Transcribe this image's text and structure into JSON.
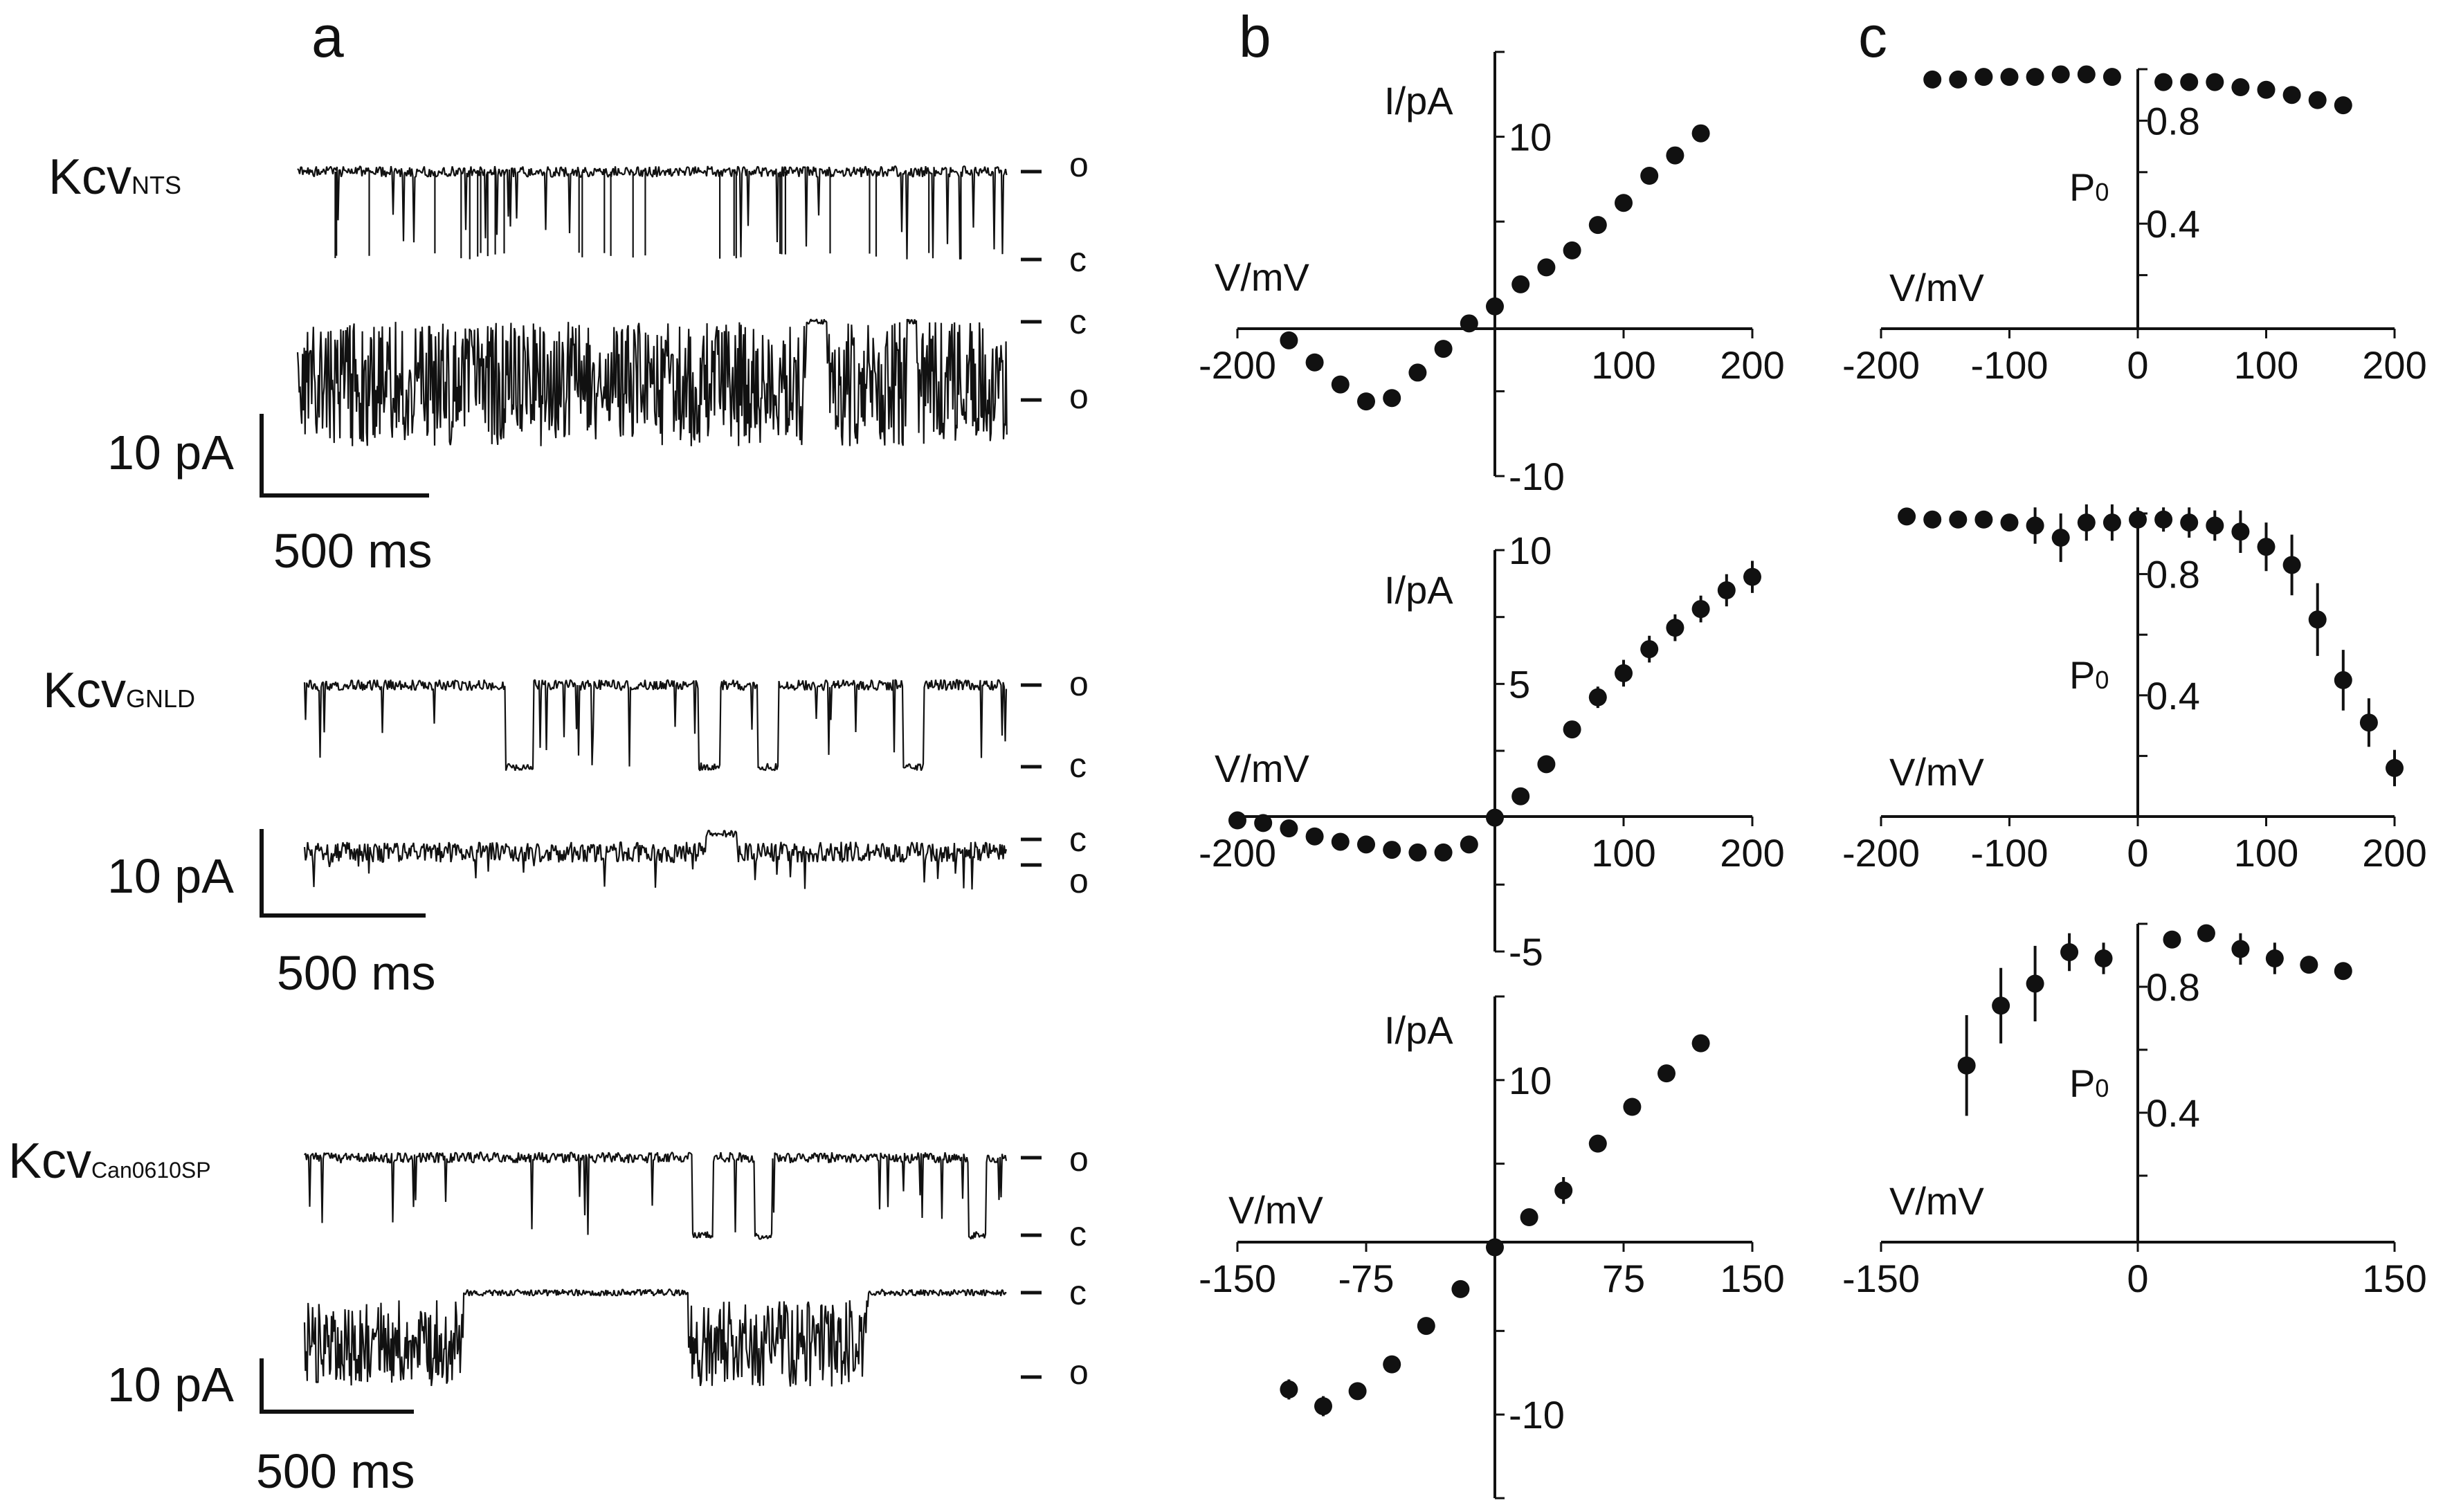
{
  "panels": {
    "a": {
      "label": "a",
      "recordings": [
        {
          "channel_main": "Kcv",
          "channel_sub": "NTS",
          "upper_trace_levels": [
            "o",
            "c"
          ],
          "lower_trace_levels": [
            "c",
            "o"
          ],
          "scale_current": "10 pA",
          "scale_time": "500 ms"
        },
        {
          "channel_main": "Kcv",
          "channel_sub": "GNLD",
          "upper_trace_levels": [
            "o",
            "c"
          ],
          "lower_trace_levels": [
            "c",
            "o"
          ],
          "scale_current": "10 pA",
          "scale_time": "500 ms"
        },
        {
          "channel_main": "Kcv",
          "channel_sub": "Can0610SP",
          "upper_trace_levels": [
            "o",
            "c"
          ],
          "lower_trace_levels": [
            "c",
            "o"
          ],
          "scale_current": "10 pA",
          "scale_time": "500 ms"
        }
      ]
    },
    "b": {
      "label": "b"
    },
    "c": {
      "label": "c"
    }
  },
  "chart_data": [
    {
      "type": "scatter",
      "panel": "b",
      "row": 1,
      "xlabel": "V/mV",
      "ylabel": "I/pA",
      "xlim": [
        -200,
        200
      ],
      "ylim": [
        -10,
        15
      ],
      "xticks": [
        -200,
        100,
        200
      ],
      "yticks": [
        10,
        -10
      ],
      "x": [
        -160,
        -140,
        -120,
        -100,
        -80,
        -60,
        -40,
        -20,
        0,
        20,
        40,
        60,
        80,
        100,
        120,
        140,
        160
      ],
      "y": [
        -2.0,
        -3.3,
        -4.6,
        -5.6,
        -5.4,
        -3.9,
        -2.5,
        -1.0,
        0.0,
        1.3,
        2.3,
        3.3,
        4.8,
        6.1,
        7.7,
        8.9,
        10.2
      ],
      "error": [
        0,
        0,
        0,
        0,
        0,
        0,
        0,
        0,
        0,
        0,
        0,
        0,
        0,
        0,
        0,
        0,
        0.4
      ]
    },
    {
      "type": "scatter",
      "panel": "b",
      "row": 2,
      "xlabel": "V/mV",
      "ylabel": "I/pA",
      "xlim": [
        -200,
        200
      ],
      "ylim": [
        -5,
        10
      ],
      "xticks": [
        -200,
        100,
        200
      ],
      "yticks": [
        10,
        5,
        -5
      ],
      "x": [
        -200,
        -180,
        -160,
        -140,
        -120,
        -100,
        -80,
        -60,
        -40,
        -20,
        0,
        20,
        40,
        60,
        80,
        100,
        120,
        140,
        160,
        180,
        200
      ],
      "y": [
        -0.1,
        -0.2,
        -0.4,
        -0.7,
        -0.9,
        -1.0,
        -1.2,
        -1.3,
        -1.3,
        -1.0,
        0.0,
        0.8,
        2.0,
        3.3,
        4.5,
        5.4,
        6.3,
        7.1,
        7.8,
        8.5,
        9.0
      ],
      "error": [
        0,
        0,
        0,
        0,
        0,
        0,
        0,
        0,
        0,
        0,
        0,
        0,
        0,
        0,
        0.4,
        0.5,
        0.5,
        0.5,
        0.5,
        0.6,
        0.6
      ]
    },
    {
      "type": "scatter",
      "panel": "b",
      "row": 3,
      "xlabel": "V/mV",
      "ylabel": "I/pA",
      "xlim": [
        -150,
        150
      ],
      "ylim": [
        -15,
        15
      ],
      "xticks": [
        -150,
        -75,
        75,
        150
      ],
      "yticks": [
        10,
        -10
      ],
      "x": [
        -120,
        -100,
        -80,
        -60,
        -40,
        -20,
        0,
        20,
        40,
        60,
        80,
        100,
        120
      ],
      "y": [
        -8.5,
        -9.5,
        -8.6,
        -7.0,
        -4.7,
        -2.5,
        0.0,
        1.8,
        3.4,
        6.2,
        8.4,
        10.4,
        12.2
      ],
      "error": [
        0.6,
        0.6,
        0,
        0,
        0,
        0,
        0,
        0,
        0.8,
        0,
        0,
        0,
        0
      ]
    },
    {
      "type": "scatter",
      "panel": "c",
      "row": 1,
      "xlabel": "V/mV",
      "ylabel": "P0",
      "xlim": [
        -200,
        200
      ],
      "ylim": [
        0,
        1.0
      ],
      "xticks": [
        -200,
        -100,
        0,
        100,
        200
      ],
      "yticks": [
        0.8,
        0.4
      ],
      "x": [
        -160,
        -140,
        -120,
        -100,
        -80,
        -60,
        -40,
        -20,
        20,
        40,
        60,
        80,
        100,
        120,
        140,
        160
      ],
      "y": [
        0.96,
        0.96,
        0.97,
        0.97,
        0.97,
        0.98,
        0.98,
        0.97,
        0.95,
        0.95,
        0.95,
        0.93,
        0.92,
        0.9,
        0.88,
        0.86
      ],
      "error": [
        0,
        0,
        0,
        0,
        0,
        0,
        0,
        0,
        0,
        0,
        0,
        0.03,
        0,
        0.03,
        0,
        0
      ]
    },
    {
      "type": "scatter",
      "panel": "c",
      "row": 2,
      "xlabel": "V/mV",
      "ylabel": "P0",
      "xlim": [
        -200,
        200
      ],
      "ylim": [
        0,
        1.0
      ],
      "xticks": [
        -200,
        -100,
        0,
        100,
        200
      ],
      "yticks": [
        0.8,
        0.4
      ],
      "x": [
        -180,
        -160,
        -140,
        -120,
        -100,
        -80,
        -60,
        -40,
        -20,
        0,
        20,
        40,
        60,
        80,
        100,
        120,
        140,
        160,
        180,
        200
      ],
      "y": [
        0.99,
        0.98,
        0.98,
        0.98,
        0.97,
        0.96,
        0.92,
        0.97,
        0.97,
        0.98,
        0.98,
        0.97,
        0.96,
        0.94,
        0.89,
        0.83,
        0.65,
        0.45,
        0.31,
        0.16
      ],
      "error": [
        0,
        0,
        0,
        0,
        0,
        0.06,
        0.08,
        0.06,
        0.06,
        0.04,
        0.04,
        0.05,
        0.05,
        0.07,
        0.08,
        0.1,
        0.12,
        0.1,
        0.08,
        0.06
      ]
    },
    {
      "type": "scatter",
      "panel": "c",
      "row": 3,
      "xlabel": "V/mV",
      "ylabel": "P0",
      "xlim": [
        -150,
        150
      ],
      "ylim": [
        0,
        1.0
      ],
      "xticks": [
        -150,
        0,
        150
      ],
      "yticks": [
        0.8,
        0.4
      ],
      "x": [
        -100,
        -80,
        -60,
        -40,
        -20,
        20,
        40,
        60,
        80,
        100,
        120
      ],
      "y": [
        0.55,
        0.74,
        0.81,
        0.91,
        0.89,
        0.95,
        0.97,
        0.92,
        0.89,
        0.87,
        0.85
      ],
      "error": [
        0.16,
        0.12,
        0.12,
        0.06,
        0.05,
        0,
        0,
        0.05,
        0.05,
        0,
        0
      ]
    }
  ]
}
